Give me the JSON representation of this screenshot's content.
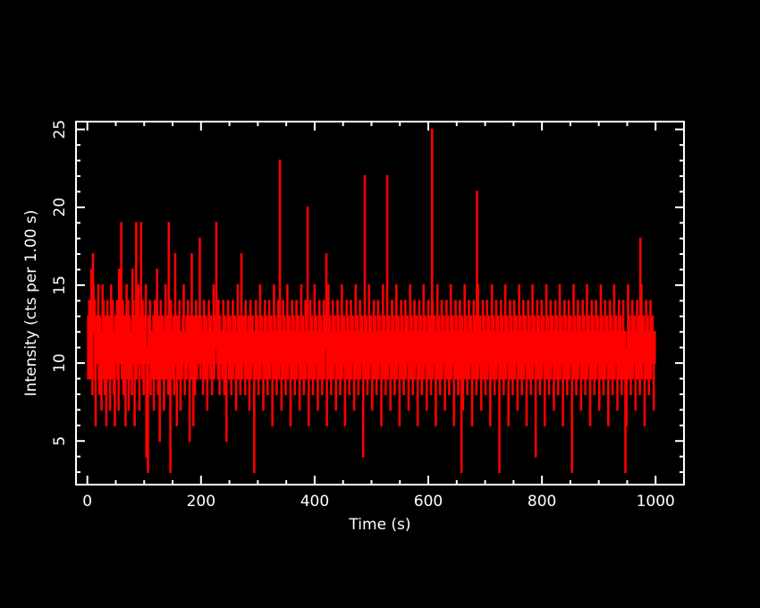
{
  "colors": {
    "background": "#000000",
    "axes": "#ffffff",
    "series": "#ff0000"
  },
  "chart_data": {
    "type": "line",
    "style": "step",
    "title": "",
    "xlabel": "Time (s)",
    "ylabel": "Intensity (cts per 1.00 s)",
    "xlim": [
      -20,
      1050
    ],
    "ylim": [
      2.2,
      25.5
    ],
    "xticks": [
      0,
      200,
      400,
      600,
      800,
      1000
    ],
    "yticks": [
      5,
      10,
      15,
      20,
      25
    ],
    "grid": false,
    "legend": "none",
    "bin_width": 1,
    "x_start": 0,
    "x_end": 1000,
    "series": [
      {
        "color": "#ff0000",
        "values": [
          13,
          9,
          12,
          14,
          10,
          9,
          13,
          16,
          11,
          8,
          17,
          15,
          12,
          14,
          9,
          6,
          11,
          13,
          10,
          12,
          15,
          9,
          8,
          13,
          11,
          10,
          7,
          12,
          15,
          9,
          14,
          11,
          8,
          13,
          10,
          6,
          12,
          14,
          11,
          9,
          10,
          13,
          7,
          12,
          15,
          9,
          11,
          14,
          10,
          8,
          12,
          6,
          13,
          11,
          10,
          14,
          9,
          12,
          7,
          16,
          11,
          13,
          10,
          19,
          9,
          12,
          14,
          8,
          11,
          10,
          13,
          6,
          12,
          15,
          9,
          11,
          14,
          7,
          10,
          13,
          12,
          9,
          11,
          8,
          16,
          10,
          14,
          12,
          6,
          11,
          13,
          19,
          9,
          12,
          10,
          15,
          11,
          7,
          13,
          10,
          19,
          12,
          9,
          14,
          11,
          8,
          13,
          10,
          12,
          15,
          4,
          11,
          9,
          3,
          13,
          12,
          10,
          14,
          8,
          11,
          12,
          9,
          10,
          13,
          7,
          11,
          14,
          12,
          9,
          10,
          16,
          11,
          8,
          13,
          12,
          5,
          10,
          14,
          11,
          9,
          12,
          13,
          10,
          7,
          11,
          12,
          15,
          9,
          10,
          13,
          11,
          8,
          19,
          12,
          10,
          3,
          14,
          11,
          9,
          12,
          10,
          13,
          8,
          11,
          17,
          12,
          10,
          6,
          13,
          11,
          9,
          12,
          14,
          10,
          7,
          11,
          12,
          9,
          13,
          10,
          15,
          11,
          8,
          12,
          10,
          13,
          9,
          11,
          14,
          12,
          10,
          5,
          13,
          11,
          9,
          17,
          12,
          10,
          6,
          13,
          11,
          8,
          12,
          14,
          10,
          9,
          11,
          13,
          12,
          10,
          18,
          9,
          11,
          13,
          10,
          12,
          8,
          11,
          14,
          12,
          9,
          10,
          13,
          11,
          7,
          12,
          10,
          14,
          11,
          9,
          12,
          13,
          10,
          8,
          11,
          12,
          15,
          9,
          10,
          13,
          11,
          19,
          12,
          10,
          9,
          14,
          11,
          8,
          13,
          12,
          10,
          11,
          9,
          12,
          14,
          10,
          8,
          11,
          13,
          12,
          5,
          10,
          11,
          14,
          12,
          9,
          10,
          13,
          11,
          8,
          12,
          10,
          14,
          9,
          11,
          12,
          13,
          10,
          7,
          11,
          12,
          15,
          9,
          10,
          13,
          11,
          8,
          12,
          17,
          10,
          9,
          11,
          13,
          12,
          10,
          8,
          14,
          11,
          12,
          9,
          10,
          13,
          11,
          7,
          12,
          14,
          10,
          9,
          11,
          13,
          12,
          10,
          3,
          11,
          12,
          14,
          9,
          10,
          13,
          11,
          8,
          12,
          10,
          15,
          9,
          11,
          12,
          13,
          10,
          7,
          11,
          12,
          14,
          9,
          10,
          13,
          11,
          8,
          12,
          10,
          14,
          9,
          11,
          12,
          13,
          10,
          6,
          11,
          12,
          15,
          9,
          10,
          13,
          11,
          8,
          12,
          10,
          14,
          9,
          11,
          23,
          13,
          10,
          7,
          11,
          12,
          14,
          9,
          10,
          13,
          11,
          8,
          12,
          10,
          15,
          9,
          11,
          12,
          13,
          10,
          6,
          11,
          12,
          14,
          9,
          10,
          13,
          11,
          8,
          12,
          10,
          14,
          9,
          11,
          12,
          13,
          10,
          7,
          11,
          12,
          15,
          9,
          10,
          13,
          11,
          8,
          12,
          10,
          14,
          9,
          11,
          12,
          20,
          10,
          6,
          11,
          12,
          14,
          9,
          10,
          13,
          11,
          8,
          12,
          10,
          15,
          9,
          11,
          12,
          13,
          10,
          7,
          11,
          12,
          14,
          9,
          10,
          13,
          11,
          8,
          12,
          10,
          14,
          9,
          11,
          12,
          13,
          17,
          6,
          11,
          12,
          15,
          9,
          10,
          13,
          11,
          8,
          12,
          10,
          14,
          9,
          11,
          12,
          13,
          10,
          7,
          11,
          12,
          14,
          9,
          10,
          13,
          11,
          8,
          12,
          10,
          15,
          9,
          11,
          12,
          13,
          10,
          6,
          11,
          12,
          14,
          9,
          10,
          13,
          11,
          8,
          12,
          10,
          14,
          9,
          11,
          12,
          13,
          10,
          7,
          11,
          12,
          15,
          9,
          10,
          13,
          11,
          8,
          12,
          10,
          14,
          9,
          11,
          12,
          13,
          10,
          4,
          11,
          12,
          22,
          9,
          10,
          13,
          11,
          8,
          12,
          10,
          15,
          9,
          11,
          12,
          13,
          10,
          7,
          11,
          12,
          14,
          9,
          10,
          13,
          11,
          8,
          12,
          10,
          14,
          9,
          11,
          12,
          13,
          10,
          6,
          11,
          12,
          15,
          9,
          10,
          13,
          11,
          8,
          12,
          10,
          22,
          9,
          11,
          12,
          13,
          10,
          7,
          11,
          12,
          14,
          9,
          10,
          13,
          11,
          8,
          12,
          10,
          15,
          9,
          11,
          12,
          13,
          10,
          6,
          11,
          12,
          14,
          9,
          10,
          13,
          11,
          8,
          12,
          10,
          14,
          9,
          11,
          12,
          13,
          10,
          7,
          11,
          12,
          15,
          9,
          10,
          13,
          11,
          8,
          12,
          10,
          14,
          9,
          11,
          12,
          13,
          10,
          6,
          11,
          12,
          14,
          9,
          10,
          13,
          11,
          8,
          12,
          10,
          15,
          9,
          11,
          12,
          13,
          10,
          7,
          11,
          12,
          14,
          9,
          10,
          13,
          11,
          8,
          12,
          25,
          14,
          9,
          11,
          12,
          13,
          10,
          6,
          11,
          12,
          15,
          9,
          10,
          13,
          11,
          8,
          12,
          10,
          14,
          9,
          11,
          12,
          13,
          10,
          7,
          11,
          12,
          14,
          9,
          10,
          13,
          11,
          8,
          12,
          10,
          15,
          9,
          11,
          12,
          13,
          10,
          6,
          11,
          12,
          14,
          9,
          10,
          13,
          11,
          8,
          12,
          10,
          14,
          9,
          11,
          3,
          13,
          10,
          7,
          11,
          12,
          15,
          9,
          10,
          13,
          11,
          8,
          12,
          10,
          14,
          9,
          11,
          12,
          13,
          10,
          6,
          11,
          12,
          14,
          9,
          10,
          13,
          11,
          8,
          21,
          10,
          15,
          9,
          11,
          12,
          13,
          10,
          7,
          11,
          12,
          14,
          9,
          10,
          13,
          11,
          8,
          12,
          10,
          14,
          9,
          11,
          12,
          13,
          10,
          6,
          11,
          12,
          15,
          9,
          10,
          13,
          11,
          8,
          12,
          10,
          14,
          9,
          11,
          12,
          13,
          10,
          3,
          11,
          12,
          14,
          9,
          10,
          13,
          11,
          8,
          12,
          10,
          15,
          9,
          11,
          12,
          13,
          10,
          6,
          11,
          12,
          14,
          9,
          10,
          13,
          11,
          8,
          12,
          10,
          14,
          9,
          11,
          12,
          13,
          10,
          7,
          11,
          12,
          15,
          9,
          10,
          13,
          11,
          8,
          12,
          10,
          14,
          9,
          11,
          12,
          13,
          10,
          6,
          11,
          12,
          14,
          9,
          10,
          13,
          11,
          8,
          12,
          10,
          15,
          9,
          11,
          12,
          13,
          10,
          4,
          11,
          12,
          14,
          9,
          10,
          13,
          11,
          8,
          12,
          10,
          14,
          9,
          11,
          12,
          13,
          10,
          6,
          11,
          12,
          15,
          9,
          10,
          13,
          11,
          8,
          12,
          10,
          14,
          9,
          11,
          12,
          13,
          10,
          7,
          11,
          12,
          14,
          9,
          10,
          13,
          11,
          8,
          12,
          10,
          15,
          9,
          11,
          12,
          13,
          10,
          6,
          11,
          12,
          14,
          9,
          10,
          13,
          11,
          8,
          12,
          10,
          14,
          9,
          11,
          12,
          13,
          10,
          3,
          11,
          12,
          15,
          9,
          10,
          13,
          11,
          8,
          12,
          10,
          14,
          9,
          11,
          12,
          13,
          10,
          7,
          11,
          12,
          14,
          9,
          10,
          13,
          11,
          8,
          12,
          10,
          15,
          9,
          11,
          12,
          13,
          10,
          6,
          11,
          12,
          14,
          9,
          10,
          13,
          11,
          8,
          12,
          10,
          14,
          9,
          11,
          12,
          13,
          10,
          7,
          11,
          12,
          15,
          9,
          10,
          13,
          11,
          8,
          12,
          10,
          14,
          9,
          11,
          12,
          13,
          10,
          6,
          11,
          12,
          14,
          9,
          10,
          13,
          11,
          8,
          12,
          10,
          15,
          9,
          11,
          12,
          13,
          10,
          7,
          11,
          12,
          14,
          9,
          10,
          13,
          11,
          8,
          12,
          10,
          14,
          9,
          11,
          12,
          3,
          10,
          6,
          11,
          12,
          15,
          9,
          10,
          13,
          11,
          8,
          12,
          10,
          14,
          9,
          11,
          12,
          13,
          10,
          7,
          11,
          12,
          14,
          9,
          10,
          13,
          11,
          8,
          18,
          10,
          15,
          9,
          11,
          12,
          13,
          10,
          6,
          11,
          12,
          14,
          9,
          10,
          13,
          11,
          8,
          12,
          10,
          14,
          9,
          11,
          12,
          13,
          10,
          7,
          11,
          12,
          10
        ]
      }
    ]
  }
}
